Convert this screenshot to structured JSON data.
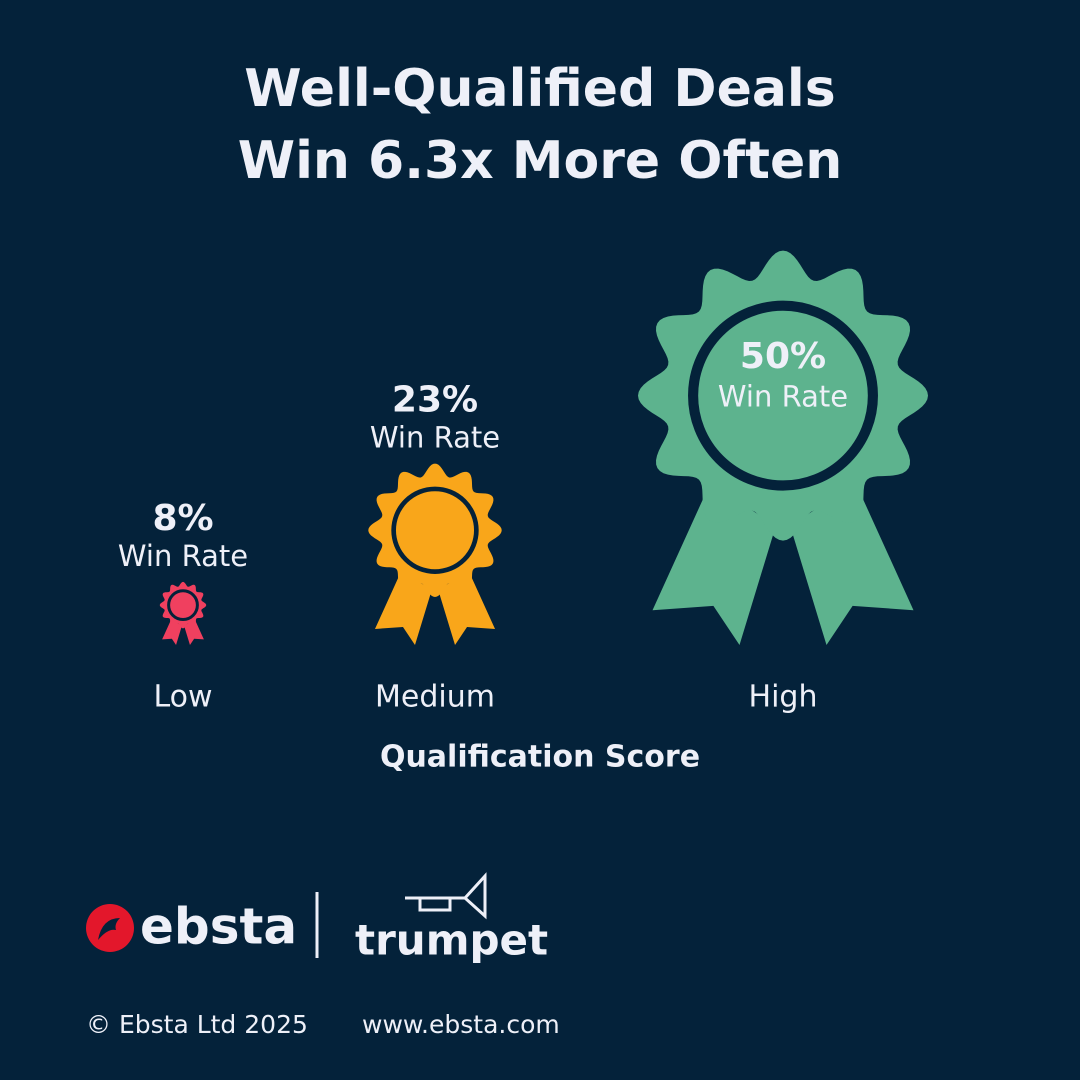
{
  "chart_data": {
    "type": "rosette",
    "title": [
      "Well-Qualified Deals",
      "Win 6.3x More Often"
    ],
    "categories": [
      "Low",
      "Medium",
      "High"
    ],
    "series": [
      {
        "name": "Win Rate",
        "colors": [
          "#f0405f",
          "#f9a61a",
          "#5db38e"
        ],
        "values": [
          8,
          23,
          50
        ],
        "value_labels": [
          "8%",
          "23%",
          "50%"
        ]
      }
    ],
    "x_label": "Qualification Score"
  },
  "footer": {
    "brand": "ebsta",
    "partner": "trumpet",
    "copyright": "© Ebsta Ltd 2025",
    "website": "www.ebsta.com"
  }
}
